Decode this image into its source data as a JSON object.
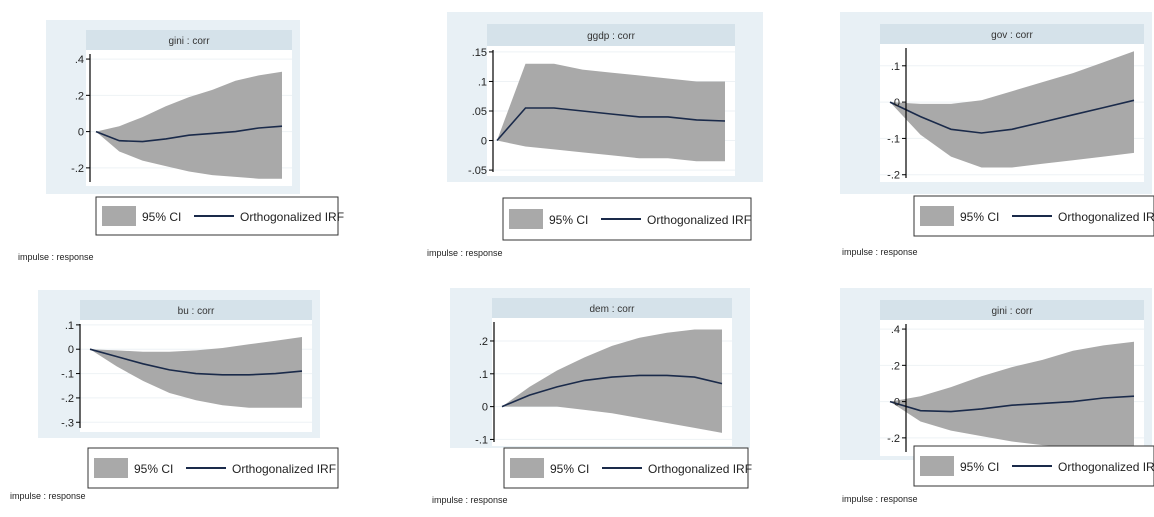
{
  "legend": {
    "ci_label": "95% CI",
    "irf_label": "Orthogonalized IRF"
  },
  "footer_note": "impulse : response",
  "colors": {
    "outer_bg": "#e8f0f5",
    "plot_bg": "#ffffff",
    "header_bg": "#d5e2ea",
    "ci_fill": "#a9a9a9",
    "irf_line": "#1a2a4a"
  },
  "chart_data": [
    {
      "type": "area",
      "title": "gini : corr",
      "x": [
        0,
        1,
        2,
        3,
        4,
        5,
        6,
        7,
        8
      ],
      "irf": [
        0,
        -0.05,
        -0.055,
        -0.04,
        -0.02,
        -0.01,
        0.0,
        0.02,
        0.03
      ],
      "ci_upper": [
        0,
        0.03,
        0.08,
        0.14,
        0.19,
        0.23,
        0.28,
        0.31,
        0.33
      ],
      "ci_lower": [
        0,
        -0.11,
        -0.16,
        -0.19,
        -0.22,
        -0.24,
        -0.25,
        -0.26,
        -0.26
      ],
      "ylim": [
        -0.3,
        0.45
      ],
      "yticks": [
        -0.2,
        0,
        0.2,
        0.4
      ],
      "ytick_labels": [
        "-.2",
        "0",
        ".2",
        ".4"
      ]
    },
    {
      "type": "area",
      "title": "ggdp : corr",
      "x": [
        0,
        1,
        2,
        3,
        4,
        5,
        6,
        7,
        8
      ],
      "irf": [
        0,
        0.055,
        0.055,
        0.05,
        0.045,
        0.04,
        0.04,
        0.035,
        0.033
      ],
      "ci_upper": [
        0,
        0.13,
        0.13,
        0.12,
        0.115,
        0.11,
        0.105,
        0.1,
        0.1
      ],
      "ci_lower": [
        0,
        -0.01,
        -0.015,
        -0.02,
        -0.025,
        -0.03,
        -0.03,
        -0.035,
        -0.035
      ],
      "ylim": [
        -0.06,
        0.16
      ],
      "yticks": [
        -0.05,
        0,
        0.05,
        0.1,
        0.15
      ],
      "ytick_labels": [
        "-.05",
        "0",
        ".05",
        ".1",
        ".15"
      ]
    },
    {
      "type": "area",
      "title": "gov : corr",
      "x": [
        0,
        1,
        2,
        3,
        4,
        5,
        6,
        7,
        8
      ],
      "irf": [
        0,
        -0.04,
        -0.075,
        -0.085,
        -0.075,
        -0.055,
        -0.035,
        -0.015,
        0.005
      ],
      "ci_upper": [
        0,
        -0.005,
        -0.005,
        0.005,
        0.03,
        0.055,
        0.08,
        0.11,
        0.14
      ],
      "ci_lower": [
        0,
        -0.09,
        -0.15,
        -0.18,
        -0.18,
        -0.17,
        -0.16,
        -0.15,
        -0.14
      ],
      "ylim": [
        -0.22,
        0.16
      ],
      "yticks": [
        -0.2,
        -0.1,
        0,
        0.1
      ],
      "ytick_labels": [
        "-.2",
        "-.1",
        "0",
        ".1"
      ]
    },
    {
      "type": "area",
      "title": "bu : corr",
      "x": [
        0,
        1,
        2,
        3,
        4,
        5,
        6,
        7,
        8
      ],
      "irf": [
        0,
        -0.03,
        -0.06,
        -0.085,
        -0.1,
        -0.105,
        -0.105,
        -0.1,
        -0.09
      ],
      "ci_upper": [
        0,
        -0.005,
        -0.01,
        -0.01,
        -0.005,
        0.005,
        0.02,
        0.035,
        0.05
      ],
      "ci_lower": [
        0,
        -0.07,
        -0.13,
        -0.18,
        -0.21,
        -0.23,
        -0.24,
        -0.24,
        -0.24
      ],
      "ylim": [
        -0.34,
        0.12
      ],
      "yticks": [
        -0.3,
        -0.2,
        -0.1,
        0,
        0.1
      ],
      "ytick_labels": [
        "-.3",
        "-.2",
        "-.1",
        "0",
        ".1"
      ]
    },
    {
      "type": "area",
      "title": "dem : corr",
      "x": [
        0,
        1,
        2,
        3,
        4,
        5,
        6,
        7,
        8
      ],
      "irf": [
        0,
        0.035,
        0.06,
        0.08,
        0.09,
        0.095,
        0.095,
        0.09,
        0.07
      ],
      "ci_upper": [
        0,
        0.06,
        0.11,
        0.15,
        0.185,
        0.21,
        0.225,
        0.235,
        0.235
      ],
      "ci_lower": [
        0,
        0.0,
        0.0,
        -0.01,
        -0.02,
        -0.035,
        -0.05,
        -0.065,
        -0.08
      ],
      "ylim": [
        -0.12,
        0.27
      ],
      "yticks": [
        -0.1,
        0,
        0.1,
        0.2
      ],
      "ytick_labels": [
        "-.1",
        "0",
        ".1",
        ".2"
      ]
    },
    {
      "type": "area",
      "title": "gini : corr",
      "x": [
        0,
        1,
        2,
        3,
        4,
        5,
        6,
        7,
        8
      ],
      "irf": [
        0,
        -0.05,
        -0.055,
        -0.04,
        -0.02,
        -0.01,
        0.0,
        0.02,
        0.03
      ],
      "ci_upper": [
        0,
        0.03,
        0.08,
        0.14,
        0.19,
        0.23,
        0.28,
        0.31,
        0.33
      ],
      "ci_lower": [
        0,
        -0.11,
        -0.16,
        -0.19,
        -0.22,
        -0.24,
        -0.25,
        -0.26,
        -0.26
      ],
      "ylim": [
        -0.3,
        0.45
      ],
      "yticks": [
        -0.2,
        0,
        0.2,
        0.4
      ],
      "ytick_labels": [
        "-.2",
        "0",
        ".2",
        ".4"
      ]
    }
  ]
}
